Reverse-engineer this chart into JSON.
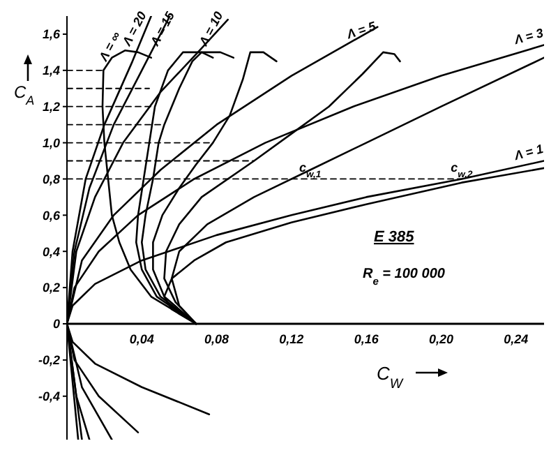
{
  "chart_data": {
    "type": "line",
    "title": "E 385",
    "subtitle": "R$_{e}$ = 100 000",
    "xlabel": "C$_{W}$",
    "ylabel": "C$_{A}$",
    "xlim": [
      0,
      0.255
    ],
    "ylim": [
      -0.64,
      1.7
    ],
    "xticks": [
      {
        "value": 0.04,
        "label": "0,04"
      },
      {
        "value": 0.08,
        "label": "0,08"
      },
      {
        "value": 0.12,
        "label": "0,12"
      },
      {
        "value": 0.16,
        "label": "0,16"
      },
      {
        "value": 0.2,
        "label": "0,20"
      },
      {
        "value": 0.24,
        "label": "0,24"
      }
    ],
    "yticks": [
      {
        "value": -0.4,
        "label": "-0,4"
      },
      {
        "value": -0.2,
        "label": "-0,2"
      },
      0,
      {
        "value": 0.2,
        "label": "0,2"
      },
      {
        "value": 0.4,
        "label": "0,4"
      },
      {
        "value": 0.6,
        "label": "0,6"
      },
      {
        "value": 0.8,
        "label": "0,8"
      },
      {
        "value": 1,
        "label": "1,0"
      },
      {
        "value": 1.2,
        "label": "1,2"
      },
      {
        "value": 1.4,
        "label": "1,4"
      },
      {
        "value": 1.6,
        "label": "1,6"
      }
    ],
    "marker": "none",
    "line_style": "solid",
    "series": [
      {
        "color": "#000000",
        "x": [
          0.069,
          0.045,
          0.034,
          0.028,
          0.024,
          0.022,
          0.02,
          0.019,
          0.0195,
          0.024,
          0.031,
          0.038,
          0.045
        ],
        "values": [
          0,
          0.15,
          0.3,
          0.45,
          0.6,
          0.8,
          1.0,
          1.2,
          1.4,
          1.47,
          1.51,
          1.5,
          1.47
        ]
      },
      {
        "color": "#000000",
        "x": [
          0.006,
          0,
          0.003,
          0.01,
          0.02,
          0.035,
          0.045
        ],
        "values": [
          -0.64,
          0,
          0.4,
          0.8,
          1.1,
          1.45,
          1.7
        ]
      },
      {
        "color": "#000000",
        "x": [
          0.069,
          0.048,
          0.04,
          0.037,
          0.038,
          0.041,
          0.044,
          0.047,
          0.054,
          0.062,
          0.072,
          0.078
        ],
        "values": [
          0,
          0.15,
          0.3,
          0.45,
          0.6,
          0.8,
          1.0,
          1.2,
          1.4,
          1.5,
          1.5,
          1.47
        ]
      },
      {
        "color": "#000000",
        "x": [
          0.008,
          0,
          0.004,
          0.012,
          0.025,
          0.04,
          0.055
        ],
        "values": [
          -0.64,
          0,
          0.4,
          0.75,
          1.1,
          1.4,
          1.7
        ]
      },
      {
        "color": "#000000",
        "x": [
          0.069,
          0.05,
          0.042,
          0.04,
          0.042,
          0.046,
          0.049,
          0.052,
          0.06,
          0.067,
          0.072,
          0.082,
          0.089
        ],
        "values": [
          0,
          0.15,
          0.3,
          0.45,
          0.6,
          0.8,
          1.0,
          1.1,
          1.3,
          1.45,
          1.5,
          1.5,
          1.47
        ]
      },
      {
        "color": "#000000",
        "x": [
          0.012,
          0.005,
          0,
          0.005,
          0.015,
          0.03,
          0.05,
          0.07,
          0.086
        ],
        "values": [
          -0.64,
          -0.4,
          0,
          0.4,
          0.7,
          1.0,
          1.28,
          1.5,
          1.68
        ]
      },
      {
        "color": "#000000",
        "x": [
          0.069,
          0.052,
          0.046,
          0.046,
          0.051,
          0.06,
          0.069,
          0.078,
          0.087,
          0.094,
          0.098,
          0.105,
          0.112
        ],
        "values": [
          0,
          0.15,
          0.3,
          0.45,
          0.6,
          0.75,
          0.88,
          1.0,
          1.15,
          1.35,
          1.5,
          1.5,
          1.45
        ]
      },
      {
        "color": "#000000",
        "x": [
          0.024,
          0.008,
          0,
          0.008,
          0.025,
          0.05,
          0.08,
          0.12,
          0.166
        ],
        "values": [
          -0.64,
          -0.35,
          0,
          0.35,
          0.6,
          0.85,
          1.1,
          1.37,
          1.64
        ]
      },
      {
        "color": "#000000",
        "x": [
          0.069,
          0.058,
          0.052,
          0.053,
          0.06,
          0.072,
          0.1,
          0.12,
          0.14,
          0.158,
          0.169,
          0.175,
          0.178
        ],
        "values": [
          0,
          0.12,
          0.25,
          0.4,
          0.55,
          0.7,
          0.9,
          1.05,
          1.2,
          1.38,
          1.5,
          1.49,
          1.45
        ]
      },
      {
        "color": "#000000",
        "x": [
          0.038,
          0.017,
          0.004,
          0,
          0.004,
          0.017,
          0.038,
          0.068,
          0.106,
          0.153,
          0.2,
          0.255
        ],
        "values": [
          -0.6,
          -0.4,
          -0.2,
          0,
          0.2,
          0.4,
          0.6,
          0.8,
          1.0,
          1.2,
          1.37,
          1.54
        ]
      },
      {
        "color": "#000000",
        "x": [
          0.069,
          0.06,
          0.056,
          0.06,
          0.075,
          0.1,
          0.13,
          0.16,
          0.2,
          0.255
        ],
        "values": [
          0,
          0.1,
          0.25,
          0.4,
          0.55,
          0.7,
          0.85,
          1.0,
          1.2,
          1.47
        ]
      },
      {
        "color": "#000000",
        "x": [
          0.076,
          0.04,
          0.015,
          0.003,
          0,
          0.003,
          0.015,
          0.04,
          0.08,
          0.12,
          0.16,
          0.211,
          0.255
        ],
        "values": [
          -0.5,
          -0.35,
          -0.22,
          -0.1,
          0,
          0.1,
          0.22,
          0.35,
          0.49,
          0.6,
          0.7,
          0.8,
          0.9
        ]
      },
      {
        "color": "#000000",
        "x": [
          0.069,
          0.056,
          0.052,
          0.056,
          0.068,
          0.085,
          0.12,
          0.16,
          0.211,
          0.255
        ],
        "values": [
          0,
          0.08,
          0.15,
          0.25,
          0.35,
          0.45,
          0.56,
          0.66,
          0.78,
          0.86
        ]
      },
      {
        "color": "#000000",
        "line_style": "dashed",
        "x": [
          0,
          0.0195
        ],
        "values": [
          1.4,
          1.4
        ]
      },
      {
        "color": "#000000",
        "line_style": "dashed",
        "x": [
          0,
          0.044
        ],
        "values": [
          1.3,
          1.3
        ]
      },
      {
        "color": "#000000",
        "line_style": "dashed",
        "x": [
          0,
          0.047
        ],
        "values": [
          1.2,
          1.2
        ]
      },
      {
        "color": "#000000",
        "line_style": "dashed",
        "x": [
          0,
          0.052
        ],
        "values": [
          1.1,
          1.1
        ]
      },
      {
        "color": "#000000",
        "line_style": "dashed",
        "x": [
          0,
          0.078
        ],
        "values": [
          1.0,
          1.0
        ]
      },
      {
        "color": "#000000",
        "line_style": "dashed",
        "x": [
          0,
          0.1
        ],
        "values": [
          0.9,
          0.9
        ]
      },
      {
        "color": "#000000",
        "line_style": "dashed",
        "x": [
          0,
          0.211
        ],
        "values": [
          0.8,
          0.8
        ]
      }
    ],
    "annotations": [
      {
        "text": "Λ = ∞",
        "x": 0.0195,
        "y": 1.4
      },
      {
        "text": "Λ = 20",
        "x": 0.038,
        "y": 1.62
      },
      {
        "text": "Λ = 15",
        "x": 0.053,
        "y": 1.62
      },
      {
        "text": "Λ = 10",
        "x": 0.079,
        "y": 1.62
      },
      {
        "text": "Λ = 5",
        "x": 0.158,
        "y": 1.6
      },
      {
        "text": "Λ = 3",
        "x": 0.255,
        "y": 1.54
      },
      {
        "text": "Λ = 1",
        "x": 0.255,
        "y": 0.9
      },
      {
        "text": "c$_{w,1}$",
        "x": 0.13,
        "y": 0.8
      },
      {
        "text": "c$_{w,2}$",
        "x": 0.211,
        "y": 0.8
      }
    ]
  }
}
